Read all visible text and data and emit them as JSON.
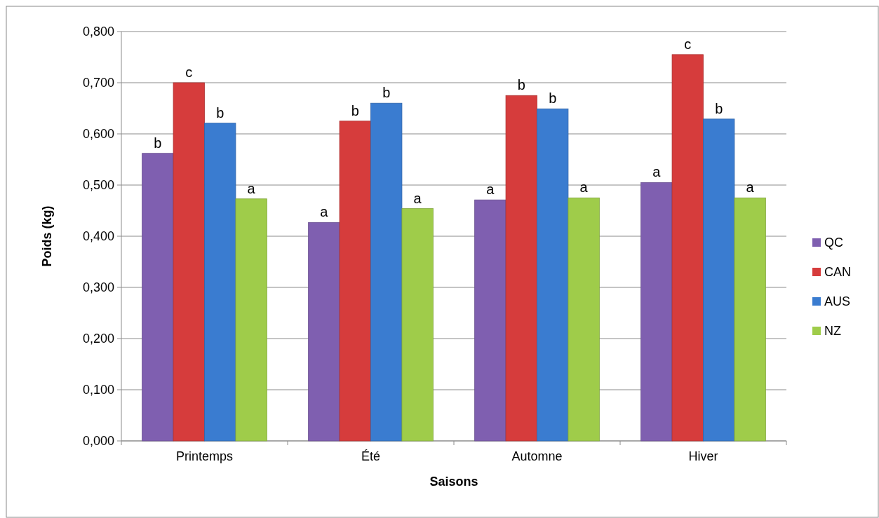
{
  "chart_data": {
    "type": "bar",
    "xlabel": "Saisons",
    "ylabel": "Poids (kg)",
    "categories": [
      "Printemps",
      "Été",
      "Automne",
      "Hiver"
    ],
    "series": [
      {
        "name": "QC",
        "color": "#7f5fb0",
        "values": [
          0.562,
          0.427,
          0.471,
          0.505
        ],
        "value_labels": [
          "b",
          "a",
          "a",
          "a"
        ]
      },
      {
        "name": "CAN",
        "color": "#d63c3c",
        "values": [
          0.7,
          0.625,
          0.675,
          0.755
        ],
        "value_labels": [
          "c",
          "b",
          "b",
          "c"
        ]
      },
      {
        "name": "AUS",
        "color": "#3a7cd0",
        "values": [
          0.621,
          0.66,
          0.649,
          0.629
        ],
        "value_labels": [
          "b",
          "b",
          "b",
          "b"
        ]
      },
      {
        "name": "NZ",
        "color": "#9fcc4a",
        "values": [
          0.473,
          0.454,
          0.475,
          0.475
        ],
        "value_labels": [
          "a",
          "a",
          "a",
          "a"
        ]
      }
    ],
    "ylim": [
      0,
      0.8
    ],
    "yticks": [
      {
        "value": 0,
        "label": "0,000"
      },
      {
        "value": 0.1,
        "label": "0,100"
      },
      {
        "value": 0.2,
        "label": "0,200"
      },
      {
        "value": 0.3,
        "label": "0,300"
      },
      {
        "value": 0.4,
        "label": "0,400"
      },
      {
        "value": 0.5,
        "label": "0,500"
      },
      {
        "value": 0.6,
        "label": "0,600"
      },
      {
        "value": 0.7,
        "label": "0,700"
      },
      {
        "value": 0.8,
        "label": "0,800"
      }
    ],
    "grid": "y",
    "legend": "right"
  }
}
